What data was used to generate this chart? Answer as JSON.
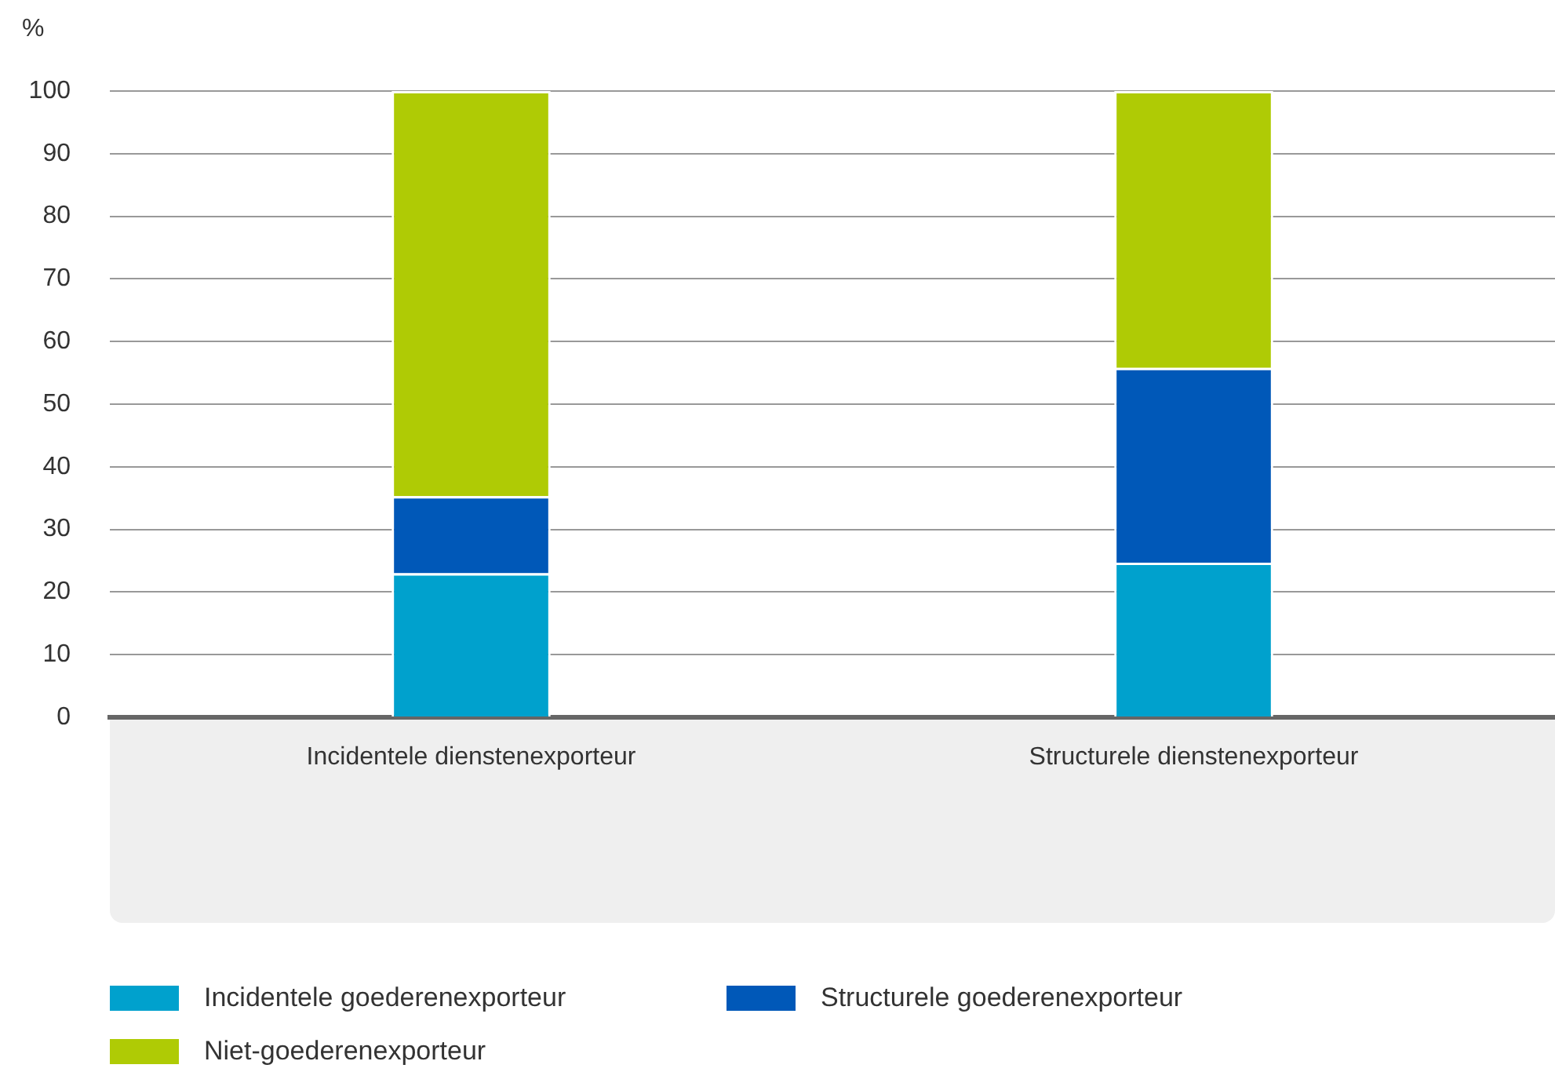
{
  "chart_data": {
    "type": "bar",
    "stacked": true,
    "ylabel": "%",
    "categories": [
      "Incidentele dienstenexporteur",
      "Structurele dienstenexporteur"
    ],
    "series": [
      {
        "name": "Incidentele goederenexporteur",
        "color": "#00a1cd",
        "values": [
          23,
          24.7
        ]
      },
      {
        "name": "Structurele goederenexporteur",
        "color": "#0058b8",
        "values": [
          12.3,
          31.1
        ]
      },
      {
        "name": "Niet-goederenexporteur",
        "color": "#afcb05",
        "values": [
          64.7,
          44.2
        ]
      }
    ],
    "ylim": [
      0,
      100
    ],
    "yticks": [
      0,
      10,
      20,
      30,
      40,
      50,
      60,
      70,
      80,
      90,
      100
    ],
    "grid": "y",
    "legend": "bottom"
  }
}
